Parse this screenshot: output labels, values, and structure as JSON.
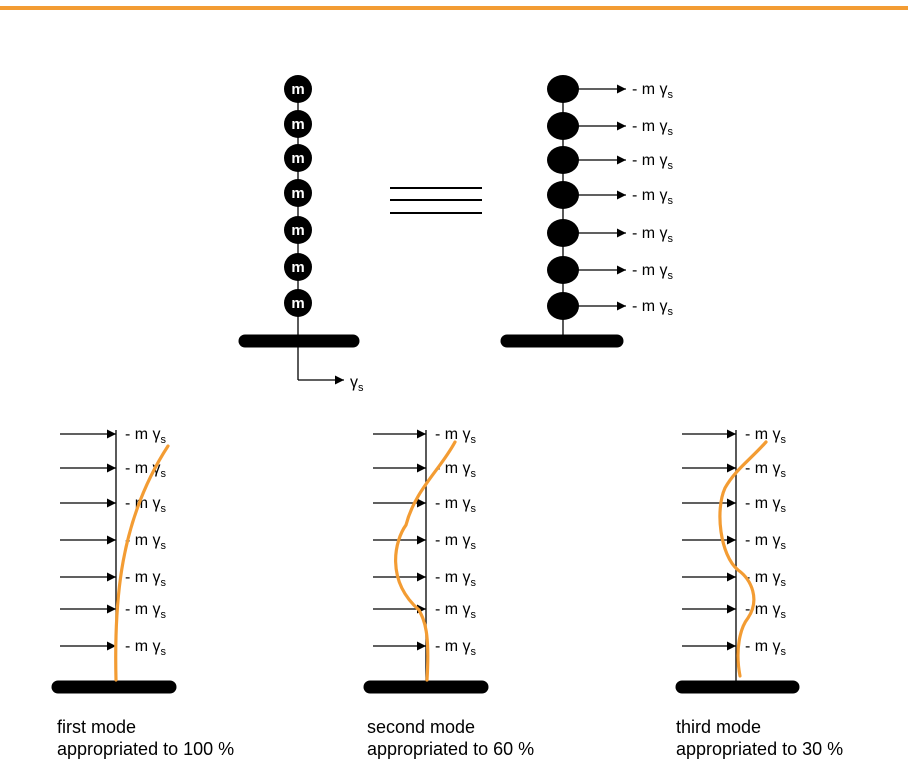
{
  "colors": {
    "accent": "#f39c33",
    "ink": "#000000",
    "background": "#ffffff"
  },
  "top_structure": {
    "mass_label": "m",
    "mass_count": 7,
    "ground_motion_label": "γ",
    "ground_motion_sub": "s"
  },
  "equivalence": {
    "symbol": "≡"
  },
  "force_label": {
    "prefix": "- m ",
    "gamma": "γ",
    "sub": "s"
  },
  "modes": [
    {
      "caption_line1": "first mode",
      "caption_line2": "appropriated to 100 %"
    },
    {
      "caption_line1": "second mode",
      "caption_line2": "appropriated to 60 %"
    },
    {
      "caption_line1": "third mode",
      "caption_line2": "appropriated to 30 %"
    }
  ]
}
